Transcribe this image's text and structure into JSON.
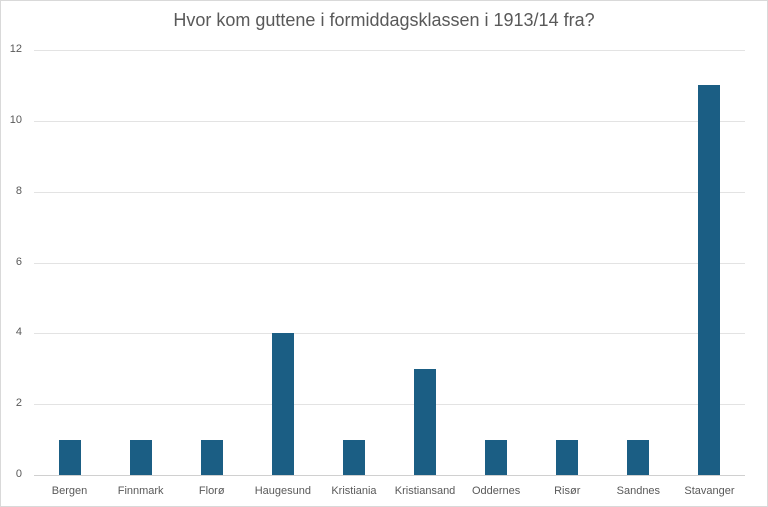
{
  "chart_data": {
    "type": "bar",
    "title": "Hvor kom guttene i formiddagsklassen i 1913/14 fra?",
    "xlabel": "",
    "ylabel": "",
    "categories": [
      "Bergen",
      "Finnmark",
      "Florø",
      "Haugesund",
      "Kristiania",
      "Kristiansand",
      "Oddernes",
      "Risør",
      "Sandnes",
      "Stavanger"
    ],
    "values": [
      1,
      1,
      1,
      4,
      1,
      3,
      1,
      1,
      1,
      11
    ],
    "ylim": [
      0,
      12
    ],
    "yticks": [
      0,
      2,
      4,
      6,
      8,
      10,
      12
    ],
    "grid": true,
    "legend": "none",
    "bar_color": "#1b5e84"
  }
}
